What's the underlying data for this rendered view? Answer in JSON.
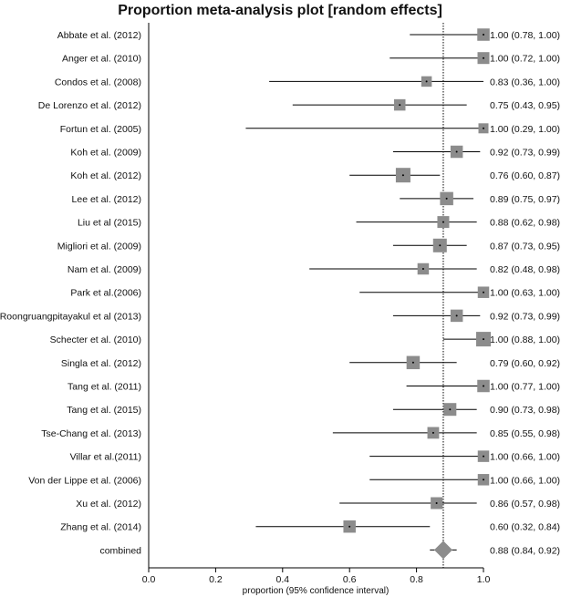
{
  "chart_data": {
    "type": "forest",
    "title": "Proportion meta-analysis plot [random effects]",
    "xlabel": "proportion (95% confidence interval)",
    "xlim": [
      0.0,
      1.0
    ],
    "xticks": [
      "0.0",
      "0.2",
      "0.4",
      "0.6",
      "0.8",
      "1.0"
    ],
    "xtick_values": [
      0.0,
      0.2,
      0.4,
      0.6,
      0.8,
      1.0
    ],
    "pooled_estimate": 0.88,
    "colors": {
      "box": "#8c8c8c",
      "line": "#000000",
      "diamond": "#8c8c8c"
    },
    "studies": [
      {
        "label": "Abbate et al. (2012)",
        "estimate": 1.0,
        "lower": 0.78,
        "upper": 1.0,
        "ci_text": "1.00 (0.78, 1.00)",
        "weight": 0.55
      },
      {
        "label": "Anger et al. (2010)",
        "estimate": 1.0,
        "lower": 0.72,
        "upper": 1.0,
        "ci_text": "1.00 (0.72, 1.00)",
        "weight": 0.5
      },
      {
        "label": "Condos et al. (2008)",
        "estimate": 0.83,
        "lower": 0.36,
        "upper": 1.0,
        "ci_text": "0.83 (0.36, 1.00)",
        "weight": 0.35
      },
      {
        "label": "De Lorenzo et al. (2012)",
        "estimate": 0.75,
        "lower": 0.43,
        "upper": 0.95,
        "ci_text": "0.75 (0.43, 0.95)",
        "weight": 0.45
      },
      {
        "label": "Fortun et al. (2005)",
        "estimate": 1.0,
        "lower": 0.29,
        "upper": 1.0,
        "ci_text": "1.00 (0.29, 1.00)",
        "weight": 0.3
      },
      {
        "label": "Koh et al. (2009)",
        "estimate": 0.92,
        "lower": 0.73,
        "upper": 0.99,
        "ci_text": "0.92 (0.73, 0.99)",
        "weight": 0.55
      },
      {
        "label": "Koh et al. (2012)",
        "estimate": 0.76,
        "lower": 0.6,
        "upper": 0.87,
        "ci_text": "0.76 (0.60, 0.87)",
        "weight": 0.8
      },
      {
        "label": "Lee et al. (2012)",
        "estimate": 0.89,
        "lower": 0.75,
        "upper": 0.97,
        "ci_text": "0.89 (0.75, 0.97)",
        "weight": 0.65
      },
      {
        "label": "Liu et al (2015)",
        "estimate": 0.88,
        "lower": 0.62,
        "upper": 0.98,
        "ci_text": "0.88 (0.62, 0.98)",
        "weight": 0.5
      },
      {
        "label": "Migliori et al. (2009)",
        "estimate": 0.87,
        "lower": 0.73,
        "upper": 0.95,
        "ci_text": "0.87 (0.73, 0.95)",
        "weight": 0.7
      },
      {
        "label": "Nam et al. (2009)",
        "estimate": 0.82,
        "lower": 0.48,
        "upper": 0.98,
        "ci_text": "0.82 (0.48, 0.98)",
        "weight": 0.45
      },
      {
        "label": "Park et al.(2006)",
        "estimate": 1.0,
        "lower": 0.63,
        "upper": 1.0,
        "ci_text": "1.00 (0.63, 1.00)",
        "weight": 0.45
      },
      {
        "label": "Roongruangpitayakul et al (2013)",
        "estimate": 0.92,
        "lower": 0.73,
        "upper": 0.99,
        "ci_text": "0.92 (0.73, 0.99)",
        "weight": 0.55
      },
      {
        "label": "Schecter et al. (2010)",
        "estimate": 1.0,
        "lower": 0.88,
        "upper": 1.0,
        "ci_text": "1.00 (0.88, 1.00)",
        "weight": 0.8
      },
      {
        "label": "Singla et al. (2012)",
        "estimate": 0.79,
        "lower": 0.6,
        "upper": 0.92,
        "ci_text": "0.79 (0.60, 0.92)",
        "weight": 0.65
      },
      {
        "label": "Tang et al. (2011)",
        "estimate": 1.0,
        "lower": 0.77,
        "upper": 1.0,
        "ci_text": "1.00 (0.77, 1.00)",
        "weight": 0.55
      },
      {
        "label": "Tang et al. (2015)",
        "estimate": 0.9,
        "lower": 0.73,
        "upper": 0.98,
        "ci_text": "0.90 (0.73, 0.98)",
        "weight": 0.6
      },
      {
        "label": "Tse-Chang et al. (2013)",
        "estimate": 0.85,
        "lower": 0.55,
        "upper": 0.98,
        "ci_text": "0.85 (0.55, 0.98)",
        "weight": 0.48
      },
      {
        "label": "Villar et al.(2011)",
        "estimate": 1.0,
        "lower": 0.66,
        "upper": 1.0,
        "ci_text": "1.00 (0.66, 1.00)",
        "weight": 0.45
      },
      {
        "label": "Von der Lippe et al. (2006)",
        "estimate": 1.0,
        "lower": 0.66,
        "upper": 1.0,
        "ci_text": "1.00 (0.66, 1.00)",
        "weight": 0.45
      },
      {
        "label": "Xu et al. (2012)",
        "estimate": 0.86,
        "lower": 0.57,
        "upper": 0.98,
        "ci_text": "0.86 (0.57, 0.98)",
        "weight": 0.5
      },
      {
        "label": "Zhang et al. (2014)",
        "estimate": 0.6,
        "lower": 0.32,
        "upper": 0.84,
        "ci_text": "0.60 (0.32, 0.84)",
        "weight": 0.55
      }
    ],
    "combined": {
      "label": "combined",
      "estimate": 0.88,
      "lower": 0.84,
      "upper": 0.92,
      "ci_text": "0.88 (0.84, 0.92)"
    }
  }
}
